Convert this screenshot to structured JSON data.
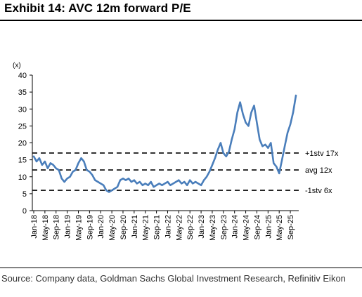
{
  "title": "Exhibit 14: AVC 12m forward P/E",
  "source": "Source: Company data, Goldman Sachs Global Investment Research, Refinitiv Eikon",
  "colors": {
    "series": "#4a7ebb",
    "reference_lines": "#000000",
    "text": "#000000"
  },
  "chart_data": {
    "type": "line",
    "title": "Exhibit 14: AVC 12m forward P/E",
    "ylabel": "(x)",
    "ylim": [
      0,
      40
    ],
    "yticks": [
      0,
      5,
      10,
      15,
      20,
      25,
      30,
      35,
      40
    ],
    "x_tick_labels": [
      "Jan-18",
      "May-18",
      "Sep-18",
      "Jan-19",
      "May-19",
      "Sep-19",
      "Jan-20",
      "May-20",
      "Sep-20",
      "Jan-21",
      "May-21",
      "Sep-21",
      "Jan-22",
      "May-22",
      "Sep-22",
      "Jan-23",
      "May-23",
      "Sep-23",
      "Jan-24",
      "May-24",
      "Sep-24",
      "Jan-25",
      "May-25",
      "Sep-25"
    ],
    "x_range": [
      "2018-01",
      "2025-11"
    ],
    "grid": false,
    "series": [
      {
        "values": [
          [
            "2018-01",
            16.0
          ],
          [
            "2018-02",
            14.5
          ],
          [
            "2018-03",
            15.5
          ],
          [
            "2018-04",
            13.5
          ],
          [
            "2018-05",
            14.5
          ],
          [
            "2018-06",
            12.5
          ],
          [
            "2018-07",
            14.0
          ],
          [
            "2018-08",
            13.5
          ],
          [
            "2018-09",
            12.5
          ],
          [
            "2018-10",
            12.0
          ],
          [
            "2018-11",
            9.5
          ],
          [
            "2018-12",
            8.5
          ],
          [
            "2019-01",
            9.5
          ],
          [
            "2019-02",
            10.0
          ],
          [
            "2019-03",
            11.5
          ],
          [
            "2019-04",
            12.0
          ],
          [
            "2019-05",
            14.0
          ],
          [
            "2019-06",
            15.5
          ],
          [
            "2019-07",
            14.5
          ],
          [
            "2019-08",
            12.0
          ],
          [
            "2019-09",
            11.5
          ],
          [
            "2019-10",
            10.5
          ],
          [
            "2019-11",
            9.0
          ],
          [
            "2019-12",
            8.5
          ],
          [
            "2020-01",
            8.0
          ],
          [
            "2020-02",
            7.5
          ],
          [
            "2020-03",
            6.0
          ],
          [
            "2020-04",
            5.5
          ],
          [
            "2020-05",
            6.0
          ],
          [
            "2020-06",
            6.5
          ],
          [
            "2020-07",
            7.0
          ],
          [
            "2020-08",
            9.0
          ],
          [
            "2020-09",
            9.5
          ],
          [
            "2020-10",
            9.0
          ],
          [
            "2020-11",
            9.5
          ],
          [
            "2020-12",
            8.5
          ],
          [
            "2021-01",
            9.0
          ],
          [
            "2021-02",
            8.0
          ],
          [
            "2021-03",
            8.5
          ],
          [
            "2021-04",
            7.5
          ],
          [
            "2021-05",
            8.0
          ],
          [
            "2021-06",
            7.5
          ],
          [
            "2021-07",
            8.5
          ],
          [
            "2021-08",
            7.0
          ],
          [
            "2021-09",
            7.5
          ],
          [
            "2021-10",
            8.0
          ],
          [
            "2021-11",
            7.5
          ],
          [
            "2021-12",
            8.0
          ],
          [
            "2022-01",
            8.5
          ],
          [
            "2022-02",
            7.5
          ],
          [
            "2022-03",
            8.0
          ],
          [
            "2022-04",
            8.5
          ],
          [
            "2022-05",
            9.0
          ],
          [
            "2022-06",
            8.0
          ],
          [
            "2022-07",
            8.5
          ],
          [
            "2022-08",
            7.5
          ],
          [
            "2022-09",
            9.0
          ],
          [
            "2022-10",
            8.0
          ],
          [
            "2022-11",
            8.5
          ],
          [
            "2022-12",
            8.0
          ],
          [
            "2023-01",
            7.5
          ],
          [
            "2023-02",
            9.0
          ],
          [
            "2023-03",
            10.0
          ],
          [
            "2023-04",
            11.5
          ],
          [
            "2023-05",
            13.5
          ],
          [
            "2023-06",
            15.5
          ],
          [
            "2023-07",
            18.0
          ],
          [
            "2023-08",
            20.0
          ],
          [
            "2023-09",
            17.0
          ],
          [
            "2023-10",
            16.0
          ],
          [
            "2023-11",
            17.5
          ],
          [
            "2023-12",
            21.0
          ],
          [
            "2024-01",
            24.0
          ],
          [
            "2024-02",
            29.0
          ],
          [
            "2024-03",
            32.0
          ],
          [
            "2024-04",
            28.5
          ],
          [
            "2024-05",
            26.0
          ],
          [
            "2024-06",
            25.0
          ],
          [
            "2024-07",
            29.0
          ],
          [
            "2024-08",
            31.0
          ],
          [
            "2024-09",
            26.0
          ],
          [
            "2024-10",
            21.0
          ],
          [
            "2024-11",
            19.0
          ],
          [
            "2024-12",
            19.5
          ],
          [
            "2025-01",
            18.5
          ],
          [
            "2025-02",
            20.0
          ],
          [
            "2025-03",
            14.0
          ],
          [
            "2025-04",
            13.0
          ],
          [
            "2025-05",
            11.0
          ],
          [
            "2025-06",
            15.0
          ],
          [
            "2025-07",
            19.0
          ],
          [
            "2025-08",
            23.0
          ],
          [
            "2025-09",
            25.5
          ],
          [
            "2025-10",
            29.0
          ],
          [
            "2025-11",
            34.0
          ]
        ]
      }
    ],
    "reference_lines": [
      {
        "value": 17,
        "label": "+1stv 17x"
      },
      {
        "value": 12,
        "label": "avg 12x"
      },
      {
        "value": 6,
        "label": "-1stv 6x"
      }
    ]
  }
}
